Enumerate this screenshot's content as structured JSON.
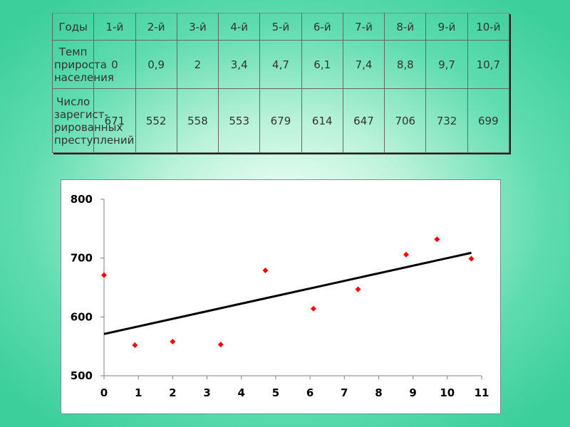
{
  "table": {
    "header": [
      "Годы",
      "1-й",
      "2-й",
      "3-й",
      "4-й",
      "5-й",
      "6-й",
      "7-й",
      "8-й",
      "9-й",
      "10-й"
    ],
    "rows": [
      {
        "label": [
          "Темп",
          "прироста",
          "населения"
        ],
        "values": [
          "0",
          "0,9",
          "2",
          "3,4",
          "4,7",
          "6,1",
          "7,4",
          "8,8",
          "9,7",
          "10,7"
        ]
      },
      {
        "label": [
          "Число",
          "зарегист-",
          "рированных",
          "преступлений"
        ],
        "values": [
          "671",
          "552",
          "558",
          "553",
          "679",
          "614",
          "647",
          "706",
          "732",
          "699"
        ]
      }
    ]
  },
  "chart_data": {
    "type": "scatter",
    "x": [
      0,
      0.9,
      2,
      3.4,
      4.7,
      6.1,
      7.4,
      8.8,
      9.7,
      10.7
    ],
    "y": [
      671,
      552,
      558,
      553,
      679,
      614,
      647,
      706,
      732,
      699
    ],
    "trendline": {
      "x": [
        0,
        10.7
      ],
      "y": [
        571,
        709
      ]
    },
    "xlim": [
      0,
      11
    ],
    "ylim": [
      500,
      800
    ],
    "xticks": [
      0,
      1,
      2,
      3,
      4,
      5,
      6,
      7,
      8,
      9,
      10,
      11
    ],
    "yticks": [
      500,
      600,
      700,
      800
    ],
    "grid": false,
    "marker_color": "#ff0000",
    "line_color": "#000000"
  }
}
